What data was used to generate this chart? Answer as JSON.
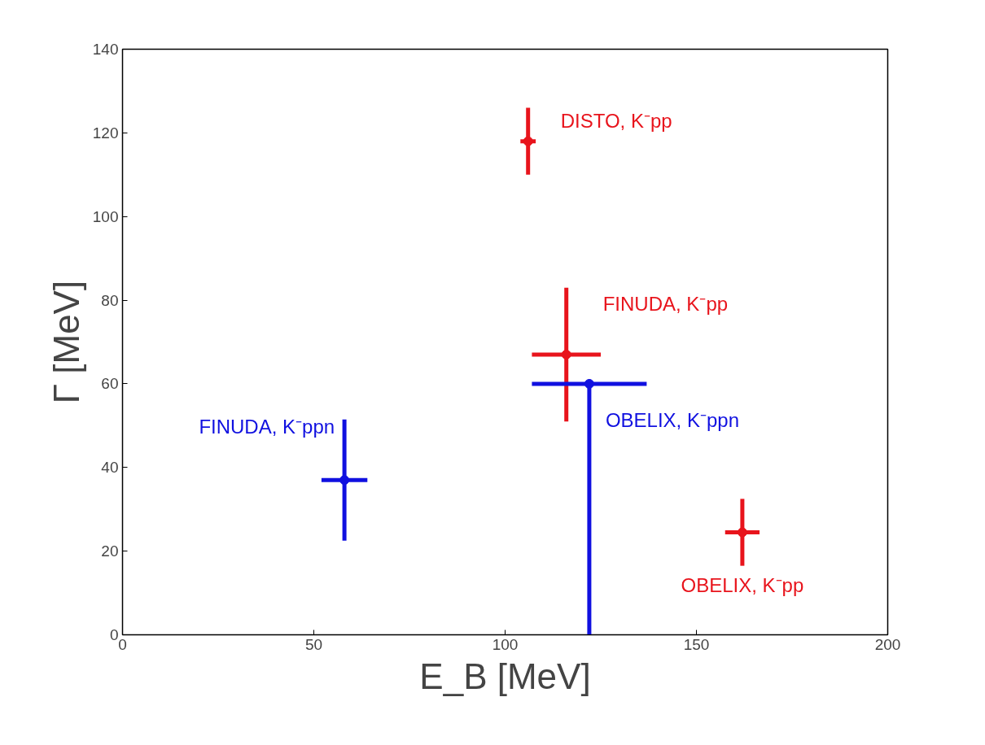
{
  "chart_data": {
    "type": "scatter",
    "xlabel": "E_B [MeV]",
    "ylabel": "Γ [MeV]",
    "xlim": [
      0,
      200
    ],
    "xticks": [
      0,
      50,
      100,
      150,
      200
    ],
    "ylim": [
      0,
      140
    ],
    "yticks": [
      0,
      20,
      40,
      60,
      80,
      100,
      120,
      140
    ],
    "grid": false,
    "marker": "circle",
    "series": [
      {
        "name": "DISTO, K⁻pp",
        "color": "#e8141c",
        "x": [
          106
        ],
        "values": [
          118
        ],
        "errors": [
          8
        ],
        "xerrors": [
          2
        ]
      },
      {
        "name": "FINUDA, K⁻pp",
        "color": "#e8141c",
        "x": [
          116
        ],
        "values": [
          67
        ],
        "errors": [
          16
        ],
        "xerrors": [
          9
        ]
      },
      {
        "name": "FINUDA, K⁻ppn",
        "color": "#1010e0",
        "x": [
          58
        ],
        "values": [
          37
        ],
        "errors": [
          14.5
        ],
        "xerrors": [
          6
        ]
      },
      {
        "name": "OBELIX, K⁻ppn",
        "color": "#1010e0",
        "x": [
          122
        ],
        "values": [
          60
        ],
        "errors": [
          [
            0,
            60
          ]
        ],
        "xerrors": [
          15
        ]
      },
      {
        "name": "OBELIX, K⁻pp",
        "color": "#e8141c",
        "x": [
          162
        ],
        "values": [
          24.5
        ],
        "errors": [
          8
        ],
        "xerrors": [
          4.5
        ]
      }
    ]
  }
}
